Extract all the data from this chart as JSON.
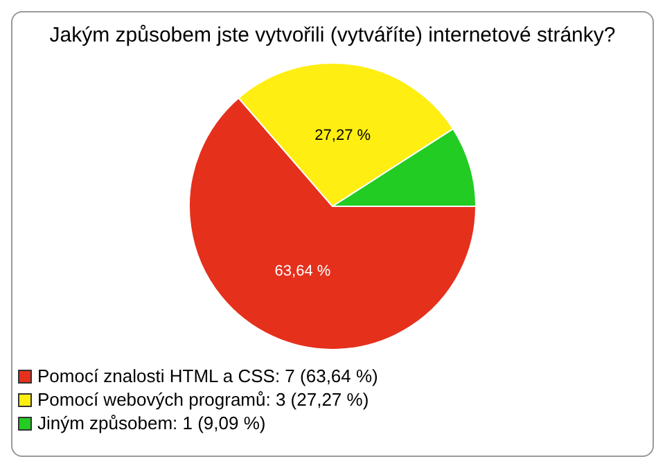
{
  "chart_data": {
    "type": "pie",
    "title": "Jakým způsobem jste vytvořili (vytváříte) internetové stránky?",
    "categories": [
      "Pomocí znalosti HTML a CSS: 7 (63,64 %)",
      "Pomocí webových programů: 3 (27,27 %)",
      "Jiným způsobem: 1 (9,09 %)"
    ],
    "values": [
      63.64,
      27.27,
      9.09
    ],
    "colors": [
      "#e5301c",
      "#ffee11",
      "#22cc22"
    ],
    "value_labels": [
      "63,64 %",
      "27,27 %",
      null
    ],
    "legend": "bottom left"
  }
}
